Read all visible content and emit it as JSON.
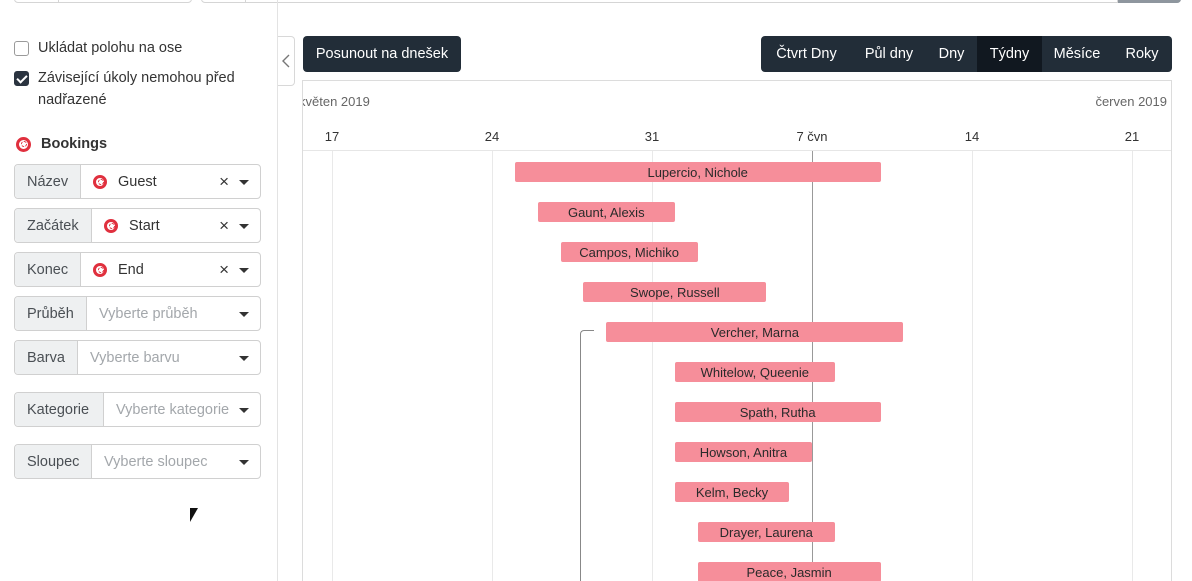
{
  "sidebar": {
    "options": [
      {
        "label": "Ukládat polohu na ose",
        "checked": false
      },
      {
        "label_line1": "Závisející úkoly nemohou před",
        "label_line2": "nadřazené",
        "checked": true
      }
    ],
    "section_title": "Bookings",
    "fields": [
      {
        "label": "Název",
        "value": "Guest",
        "has_icon": true,
        "clearable": true
      },
      {
        "label": "Začátek",
        "value": "Start",
        "has_icon": true,
        "clearable": true
      },
      {
        "label": "Konec",
        "value": "End",
        "has_icon": true,
        "clearable": true
      },
      {
        "label": "Průběh",
        "placeholder": "Vyberte průběh"
      },
      {
        "label": "Barva",
        "placeholder": "Vyberte barvu"
      },
      {
        "label": "Kategorie",
        "placeholder": "Vyberte kategorie"
      },
      {
        "label": "Sloupec",
        "placeholder": "Vyberte sloupec"
      }
    ],
    "clear_glyph": "×"
  },
  "toolbar": {
    "today_label": "Posunout na dnešek",
    "scales": [
      {
        "label": "Čtvrt Dny",
        "active": false
      },
      {
        "label": "Půl dny",
        "active": false
      },
      {
        "label": "Dny",
        "active": false
      },
      {
        "label": "Týdny",
        "active": true
      },
      {
        "label": "Měsíce",
        "active": false
      },
      {
        "label": "Roky",
        "active": false
      }
    ]
  },
  "timeline": {
    "months": [
      "květen 2019",
      "červen 2019"
    ],
    "days": [
      "17",
      "24",
      "31",
      "7 čvn",
      "14",
      "21"
    ],
    "today": "2019-06-07",
    "bookings": [
      {
        "guest": "Lupercio, Nichole",
        "start": "2019-05-25",
        "end": "2019-06-10"
      },
      {
        "guest": "Gaunt, Alexis",
        "start": "2019-05-26",
        "end": "2019-06-01"
      },
      {
        "guest": "Campos, Michiko",
        "start": "2019-05-27",
        "end": "2019-06-02"
      },
      {
        "guest": "Swope, Russell",
        "start": "2019-05-28",
        "end": "2019-06-05"
      },
      {
        "guest": "Vercher, Marna",
        "start": "2019-05-29",
        "end": "2019-06-11"
      },
      {
        "guest": "Whitelow, Queenie",
        "start": "2019-06-01",
        "end": "2019-06-08"
      },
      {
        "guest": "Spath, Rutha",
        "start": "2019-06-01",
        "end": "2019-06-10"
      },
      {
        "guest": "Howson, Anitra",
        "start": "2019-06-01",
        "end": "2019-06-07"
      },
      {
        "guest": "Kelm, Becky",
        "start": "2019-06-01",
        "end": "2019-06-06"
      },
      {
        "guest": "Drayer, Laurena",
        "start": "2019-06-02",
        "end": "2019-06-08"
      },
      {
        "guest": "Peace, Jasmin",
        "start": "2019-06-02",
        "end": "2019-06-10"
      }
    ]
  },
  "colors": {
    "bar": "#f68e9a",
    "dark_button": "#222d38",
    "active_scale": "#111820",
    "brand_icon": "#e0303e"
  },
  "icons": {
    "brand": "soccer-ball-icon",
    "collapse": "chevron-left-icon",
    "dropdown": "caret-down-icon",
    "clear": "close-icon"
  }
}
